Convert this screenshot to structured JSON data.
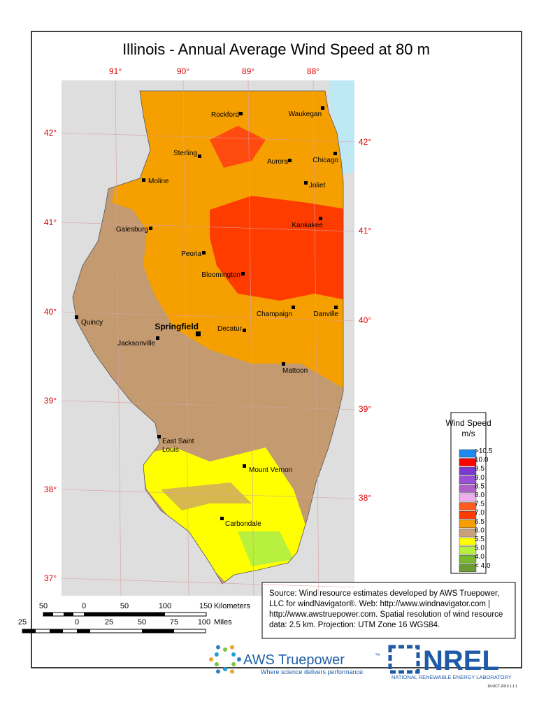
{
  "title": "Illinois - Annual Average Wind Speed at 80 m",
  "lon_labels": [
    "91°",
    "90°",
    "89°",
    "88°"
  ],
  "lat_labels_left": [
    "42°",
    "41°",
    "40°",
    "39°",
    "38°",
    "37°"
  ],
  "lat_labels_right": [
    "42°",
    "41°",
    "40°",
    "39°",
    "38°"
  ],
  "cities": [
    "Rockford",
    "Waukegan",
    "Sterling",
    "Aurora",
    "Chicago",
    "Moline",
    "Joliet",
    "Galesburg",
    "Kankakee",
    "Peoria",
    "Bloomington",
    "Quincy",
    "Champaign",
    "Danville",
    "Springfield",
    "Decatur",
    "Jacksonville",
    "Mattoon",
    "East Saint",
    "Louis",
    "Mount Vernon",
    "Carbondale"
  ],
  "legend": {
    "title": "Wind Speed",
    "unit": "m/s",
    "items": [
      {
        "label": ">10.5",
        "color": "#1e88f0"
      },
      {
        "label": "10.0",
        "color": "#ff0000"
      },
      {
        "label": "9.5",
        "color": "#7a3ad0"
      },
      {
        "label": "9.0",
        "color": "#9b4fd8"
      },
      {
        "label": "8.5",
        "color": "#b060c8"
      },
      {
        "label": "8.0",
        "color": "#f0b0f0"
      },
      {
        "label": "7.5",
        "color": "#ff5a20"
      },
      {
        "label": "7.0",
        "color": "#ff3c00"
      },
      {
        "label": "6.5",
        "color": "#f5a000"
      },
      {
        "label": "6.0",
        "color": "#c8a07a"
      },
      {
        "label": "5.5",
        "color": "#ffff00"
      },
      {
        "label": "5.0",
        "color": "#b8f040"
      },
      {
        "label": "4.0",
        "color": "#7ab830"
      },
      {
        "label": "< 4.0",
        "color": "#6a9a30"
      }
    ]
  },
  "source": [
    "Source: Wind resource estimates developed by AWS Truepower,",
    "LLC for windNavigator®. Web: http://www.windnavigator.com |",
    "http://www.awstruepower.com. Spatial resolution of wind resource",
    "data: 2.5 km. Projection: UTM Zone 16 WGS84."
  ],
  "scale_km": {
    "labels": [
      "50",
      "0",
      "50",
      "100",
      "150"
    ],
    "unit": "Kilometers"
  },
  "scale_mi": {
    "labels": [
      "25",
      "0",
      "25",
      "50",
      "75",
      "100"
    ],
    "unit": "Miles"
  },
  "logos": {
    "aws": "AWS Truepower",
    "aws_tm": "™",
    "aws_tagline": "Where science delivers performance.",
    "nrel": "NREL",
    "nrel_name": "NATIONAL RENEWABLE ENERGY LABORATORY",
    "date": "18-OCT-2010 1.1.1"
  }
}
